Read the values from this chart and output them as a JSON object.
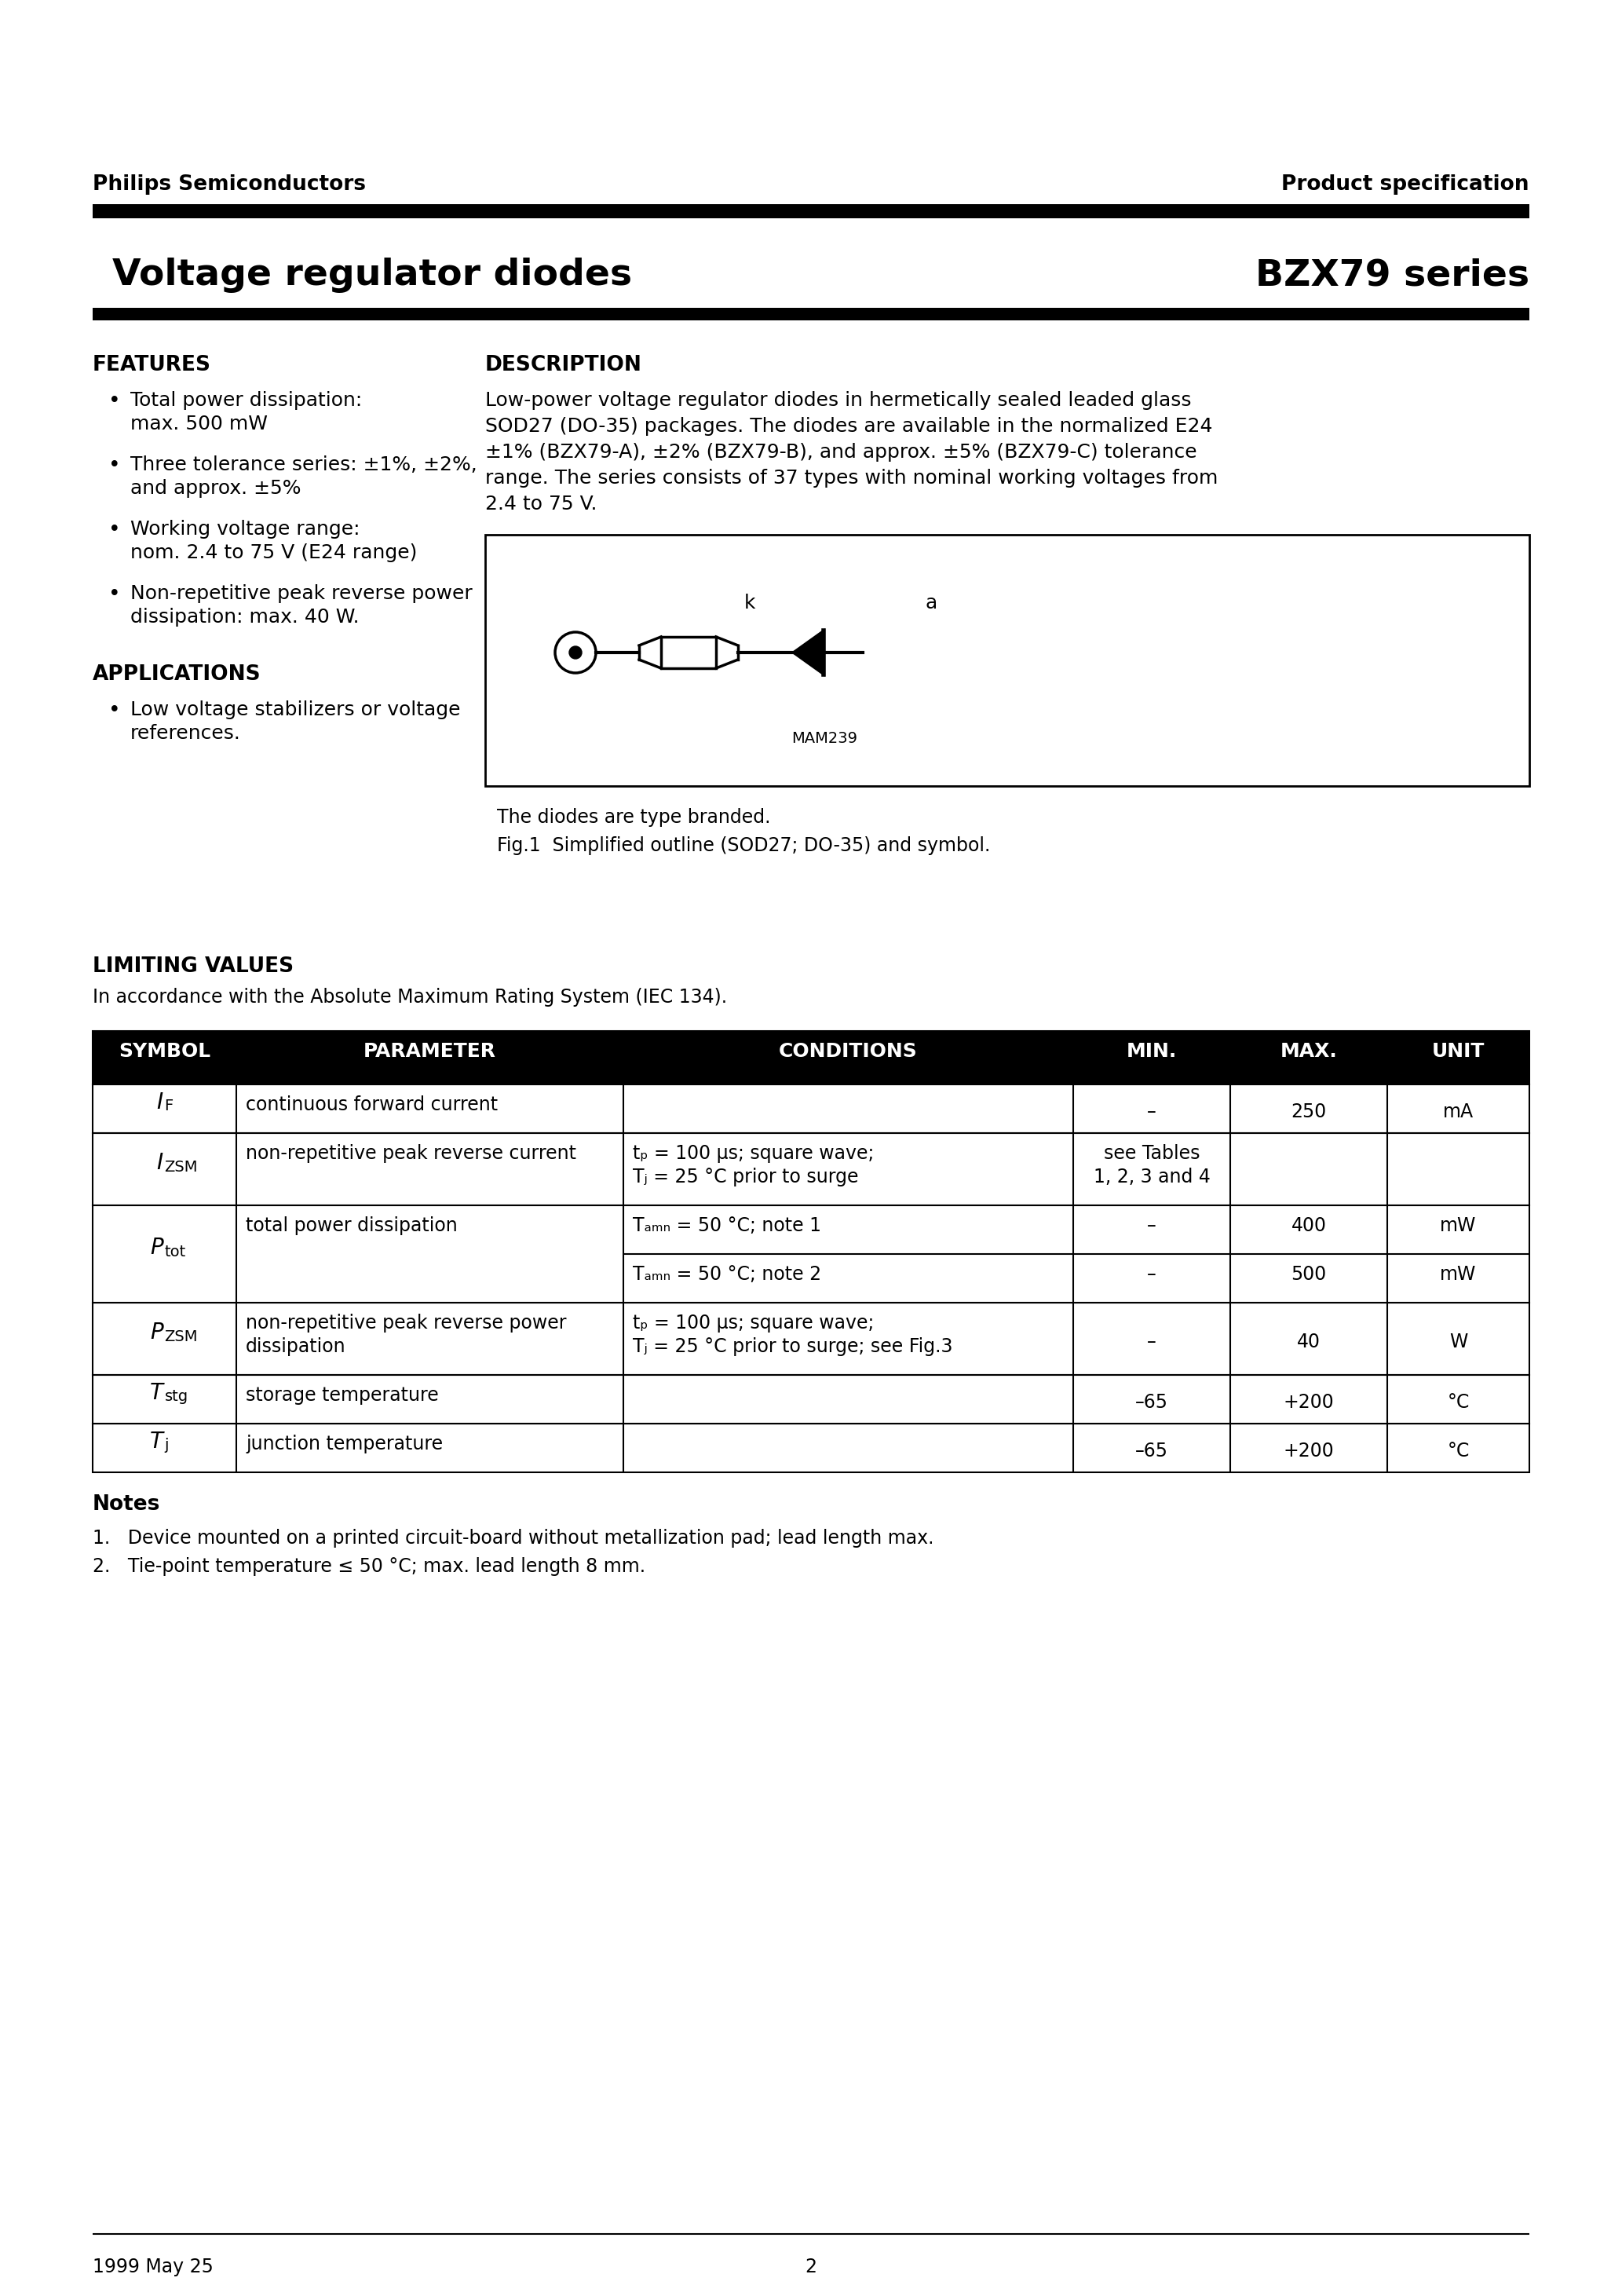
{
  "page_title_left": "Voltage regulator diodes",
  "page_title_right": "BZX79 series",
  "header_left": "Philips Semiconductors",
  "header_right": "Product specification",
  "footer_left": "1999 May 25",
  "footer_center": "2",
  "features_title": "FEATURES",
  "features_bullets": [
    "Total power dissipation:\nmax. 500 mW",
    "Three tolerance series: ±1%, ±2%,\nand approx. ±5%",
    "Working voltage range:\nnom. 2.4 to 75 V (E24 range)",
    "Non-repetitive peak reverse power\ndissipation: max. 40 W."
  ],
  "applications_title": "APPLICATIONS",
  "applications_bullets": [
    "Low voltage stabilizers or voltage\nreferences."
  ],
  "description_title": "DESCRIPTION",
  "description_text": "Low-power voltage regulator diodes in hermetically sealed leaded glass\nSOD27 (DO-35) packages. The diodes are available in the normalized E24\n±1% (BZX79-A), ±2% (BZX79-B), and approx. ±5% (BZX79-C) tolerance\nrange. The series consists of 37 types with nominal working voltages from\n2.4 to 75 V.",
  "fig_caption1": "The diodes are type branded.",
  "fig_caption2": "Fig.1  Simplified outline (SOD27; DO-35) and symbol.",
  "fig_label_k": "k",
  "fig_label_a": "a",
  "fig_label_mam": "MAM239",
  "limiting_title": "LIMITING VALUES",
  "limiting_subtitle": "In accordance with the Absolute Maximum Rating System (IEC 134).",
  "table_headers": [
    "SYMBOL",
    "PARAMETER",
    "CONDITIONS",
    "MIN.",
    "MAX.",
    "UNIT"
  ],
  "notes_title": "Notes",
  "notes": [
    "1.   Device mounted on a printed circuit-board without metallization pad; lead length max.",
    "2.   Tie-point temperature ≤ 50 °C; max. lead length 8 mm."
  ],
  "bg_color": "#ffffff",
  "text_color": "#000000"
}
